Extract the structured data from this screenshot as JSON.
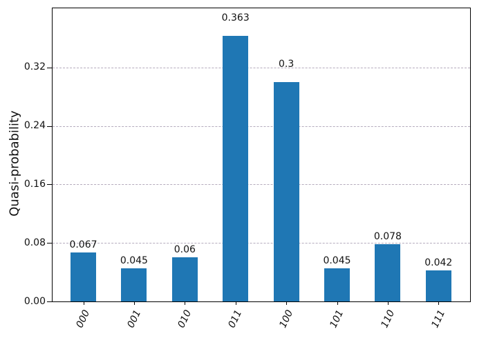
{
  "chart_data": {
    "type": "bar",
    "title": "",
    "categories": [
      "000",
      "001",
      "010",
      "011",
      "100",
      "101",
      "110",
      "111"
    ],
    "values": [
      0.067,
      0.045,
      0.06,
      0.363,
      0.3,
      0.045,
      0.078,
      0.042
    ],
    "value_labels": [
      "0.067",
      "0.045",
      "0.06",
      "0.363",
      "0.3",
      "0.045",
      "0.078",
      "0.042"
    ],
    "xlabel": "",
    "ylabel": "Quasi-probability",
    "ytick_labels": [
      "0.00",
      "0.08",
      "0.16",
      "0.24",
      "0.32"
    ],
    "ytick_values": [
      0.0,
      0.08,
      0.16,
      0.24,
      0.32
    ],
    "ylim": [
      0,
      0.4
    ],
    "grid": {
      "axis": "y",
      "style": "dashed",
      "color": "#b4aabc"
    },
    "legend": null,
    "colors": {
      "bar": "#1f77b4",
      "axis": "#000000",
      "text": "#111111",
      "background": "#ffffff"
    }
  }
}
